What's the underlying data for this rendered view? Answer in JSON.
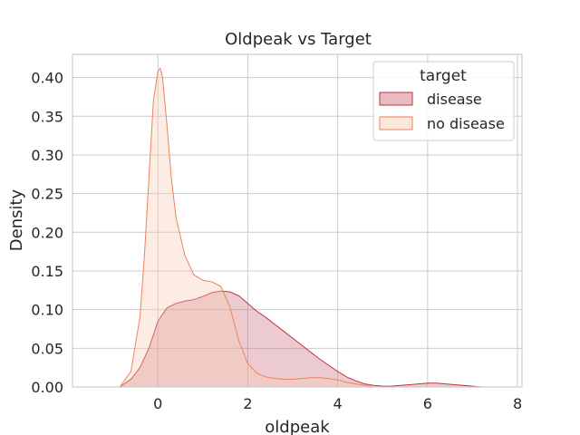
{
  "chart_data": {
    "type": "area",
    "title": "Oldpeak vs Target",
    "xlabel": "oldpeak",
    "ylabel": "Density",
    "xlim": [
      -1.9,
      8.1
    ],
    "ylim": [
      0,
      0.43
    ],
    "x_ticks": [
      0,
      2,
      4,
      6,
      8
    ],
    "x_tick_labels": [
      "0",
      "2",
      "4",
      "6",
      "8"
    ],
    "y_ticks": [
      0.0,
      0.05,
      0.1,
      0.15,
      0.2,
      0.25,
      0.3,
      0.35,
      0.4
    ],
    "y_tick_labels": [
      "0.00",
      "0.05",
      "0.10",
      "0.15",
      "0.20",
      "0.25",
      "0.30",
      "0.35",
      "0.40"
    ],
    "grid": true,
    "legend": {
      "title": "target",
      "position": "top-right"
    },
    "series": [
      {
        "name": "disease",
        "color": "#c0323c",
        "fill": "#c96a78",
        "x": [
          -0.85,
          -0.6,
          -0.4,
          -0.2,
          0.0,
          0.2,
          0.4,
          0.6,
          0.8,
          1.0,
          1.2,
          1.4,
          1.6,
          1.8,
          2.0,
          2.2,
          2.4,
          2.6,
          2.8,
          3.0,
          3.2,
          3.4,
          3.6,
          3.8,
          4.0,
          4.2,
          4.4,
          4.6,
          4.8,
          5.0,
          5.2,
          5.4,
          5.6,
          5.8,
          6.0,
          6.2,
          6.4,
          6.6,
          6.8,
          7.0,
          7.2
        ],
        "y": [
          0.0,
          0.01,
          0.025,
          0.05,
          0.085,
          0.102,
          0.108,
          0.111,
          0.113,
          0.117,
          0.122,
          0.124,
          0.123,
          0.118,
          0.108,
          0.098,
          0.09,
          0.081,
          0.072,
          0.063,
          0.054,
          0.045,
          0.036,
          0.028,
          0.02,
          0.013,
          0.008,
          0.004,
          0.002,
          0.001,
          0.001,
          0.002,
          0.003,
          0.004,
          0.005,
          0.005,
          0.004,
          0.003,
          0.002,
          0.001,
          0.0
        ]
      },
      {
        "name": "no disease",
        "color": "#f0825a",
        "fill": "#f8c9b0",
        "x": [
          -0.85,
          -0.6,
          -0.4,
          -0.3,
          -0.2,
          -0.1,
          0.0,
          0.05,
          0.1,
          0.2,
          0.3,
          0.4,
          0.6,
          0.8,
          1.0,
          1.2,
          1.4,
          1.6,
          1.8,
          2.0,
          2.2,
          2.4,
          2.6,
          2.8,
          3.0,
          3.2,
          3.4,
          3.6,
          3.8,
          4.0,
          4.2,
          4.4,
          4.6,
          4.8
        ],
        "y": [
          0.0,
          0.02,
          0.09,
          0.17,
          0.27,
          0.37,
          0.408,
          0.412,
          0.402,
          0.34,
          0.27,
          0.22,
          0.17,
          0.145,
          0.138,
          0.136,
          0.13,
          0.104,
          0.06,
          0.03,
          0.018,
          0.013,
          0.011,
          0.01,
          0.01,
          0.011,
          0.012,
          0.012,
          0.011,
          0.009,
          0.006,
          0.004,
          0.002,
          0.0
        ]
      }
    ]
  }
}
